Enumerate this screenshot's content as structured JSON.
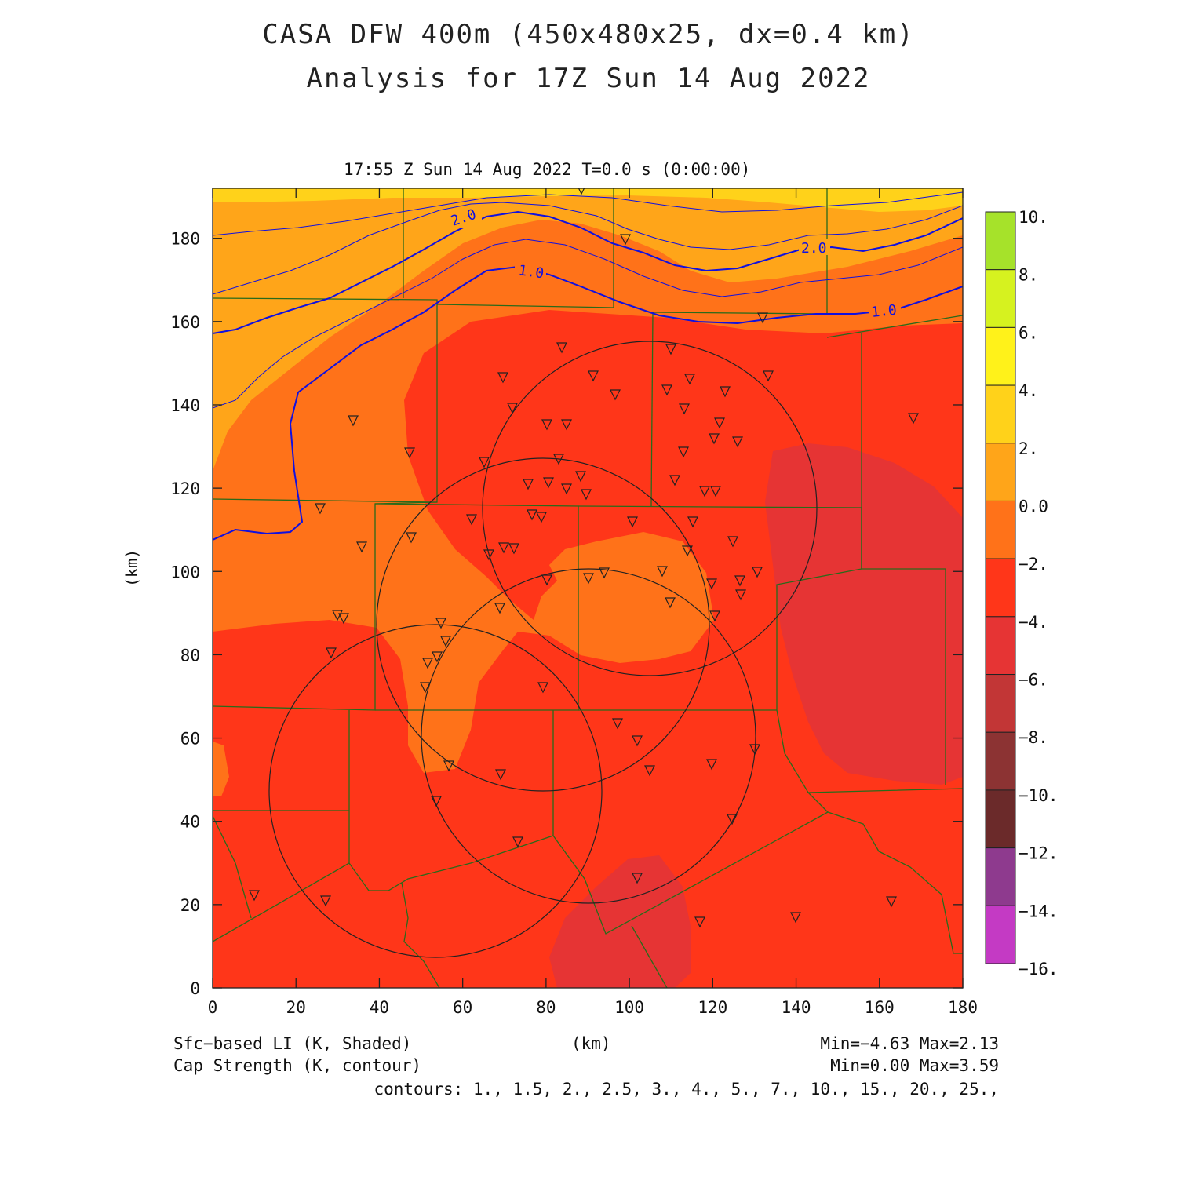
{
  "title": {
    "line1": "CASA DFW 400m (450x480x25, dx=0.4 km)",
    "line2": "Analysis for 17Z Sun 14 Aug 2022"
  },
  "plot_header": "17:55 Z Sun 14 Aug 2022   T=0.0 s (0:00:00)",
  "axes": {
    "x_label": "(km)",
    "y_label": "(km)",
    "x_ticks": [
      "0",
      "20",
      "40",
      "60",
      "80",
      "100",
      "120",
      "140",
      "160",
      "180"
    ],
    "y_ticks": [
      "0",
      "20",
      "40",
      "60",
      "80",
      "100",
      "120",
      "140",
      "160",
      "180"
    ]
  },
  "colorbar": {
    "labels": [
      "10.",
      "8.",
      "6.",
      "4.",
      "2.",
      "0.0",
      "−2.",
      "−4.",
      "−6.",
      "−8.",
      "−10.",
      "−12.",
      "−14.",
      "−16."
    ],
    "colors": [
      "#a6e22a",
      "#d6f21f",
      "#fff21a",
      "#ffd21a",
      "#ffa519",
      "#ff7219",
      "#ff3619",
      "#e63434",
      "#c23636",
      "#8c3333",
      "#6b2a2a",
      "#8e3a8e",
      "#c43ac4",
      "#e23ae2"
    ]
  },
  "contour_labels": [
    "2.0",
    "1.0",
    "2.0",
    "1.0"
  ],
  "footer": {
    "left1": "Sfc−based LI (K, Shaded)",
    "left2": "Cap Strength (K, contour)",
    "center": "(km)",
    "right1": "Min=−4.63 Max=2.13",
    "right2": "Min=0.00 Max=3.59",
    "contours": "contours: 1., 1.5, 2., 2.5, 3., 4., 5., 7., 10., 15., 20., 25.,"
  },
  "colors": {
    "li_0_2": "#ffa519",
    "li_m2_0": "#ff7219",
    "li_m4_m2": "#ff3619",
    "li_m6_m4": "#e63434",
    "li_2_4": "#ffd21a",
    "cap_contour": "#1010e0",
    "county_lines": "#2a6a1a"
  }
}
